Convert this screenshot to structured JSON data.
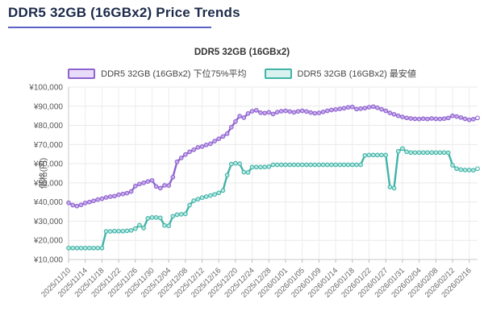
{
  "page": {
    "title": "DDR5 32GB (16GBx2) Price Trends"
  },
  "chart_data": {
    "type": "line",
    "title": "DDR5 32GB (16GBx2)",
    "ylabel": "価格(円)",
    "ylim": [
      10000,
      100000
    ],
    "grid": true,
    "legend_position": "top",
    "y_tick_labels": [
      "¥10,000",
      "¥20,000",
      "¥30,000",
      "¥40,000",
      "¥50,000",
      "¥60,000",
      "¥70,000",
      "¥80,000",
      "¥90,000",
      "¥100,000"
    ],
    "x_tick_labels": [
      "2025/11/10",
      "2025/11/14",
      "2025/11/18",
      "2025/11/22",
      "2025/11/26",
      "2025/11/30",
      "2025/12/04",
      "2025/12/08",
      "2025/12/12",
      "2025/12/16",
      "2025/12/20",
      "2025/12/24",
      "2025/12/28",
      "2026/01/01",
      "2026/01/05",
      "2026/01/09",
      "2026/01/14",
      "2026/01/18",
      "2026/01/22",
      "2026/01/27",
      "2026/01/31",
      "2026/02/04",
      "2026/02/08",
      "2026/02/12",
      "2026/02/16"
    ],
    "tick_every": 4,
    "series": [
      {
        "name": "DDR5 32GB (16GBx2) 下位75%平均",
        "color": "#8d63d0",
        "marker_fill": "#c9abe9",
        "legend_fill": "#e8dcf8",
        "values": [
          39600,
          38400,
          37900,
          38500,
          39500,
          40000,
          40600,
          41300,
          41700,
          42400,
          42800,
          43100,
          43800,
          44200,
          44600,
          45500,
          48300,
          49400,
          50000,
          50700,
          51300,
          48100,
          47200,
          48700,
          48600,
          53000,
          61000,
          63000,
          64800,
          66200,
          67300,
          68500,
          68900,
          69800,
          70400,
          71800,
          73000,
          74200,
          75700,
          79000,
          82000,
          84800,
          84000,
          86200,
          87400,
          87900,
          86600,
          86400,
          86800,
          85900,
          86900,
          87400,
          87600,
          87200,
          86800,
          87300,
          87600,
          87200,
          86700,
          86300,
          86500,
          87000,
          87600,
          88000,
          88300,
          88600,
          88900,
          89400,
          89600,
          88500,
          88700,
          89000,
          89500,
          89800,
          89200,
          88400,
          87600,
          86500,
          85800,
          85000,
          84400,
          83900,
          83600,
          83400,
          83300,
          83500,
          83300,
          83600,
          83400,
          83300,
          83500,
          83900,
          85000,
          84600,
          84100,
          83400,
          82900,
          83200,
          83900
        ]
      },
      {
        "name": "DDR5 32GB (16GBx2) 最安値",
        "color": "#41b3a7",
        "marker_fill": "#b9e7e1",
        "legend_fill": "#d9f2ef",
        "values": [
          15980,
          15980,
          15980,
          15980,
          15980,
          15980,
          15980,
          15980,
          15980,
          24680,
          24680,
          24800,
          24800,
          24800,
          24990,
          25200,
          26100,
          27900,
          26400,
          31500,
          31900,
          31900,
          31700,
          27800,
          27600,
          32600,
          33400,
          33600,
          33800,
          38400,
          40700,
          41500,
          42300,
          42800,
          43400,
          44000,
          44800,
          46000,
          54000,
          59800,
          60200,
          60000,
          55600,
          55400,
          58200,
          58200,
          58200,
          58300,
          58400,
          59400,
          59400,
          59400,
          59400,
          59400,
          59400,
          59400,
          59400,
          59400,
          59400,
          59400,
          59400,
          59400,
          59400,
          59400,
          59400,
          59400,
          59400,
          59400,
          59400,
          59400,
          59400,
          64300,
          64500,
          64500,
          64500,
          64500,
          64500,
          47800,
          47200,
          66500,
          67900,
          66200,
          65800,
          65800,
          65800,
          65800,
          65800,
          65800,
          65800,
          65800,
          65800,
          65700,
          59200,
          57400,
          56900,
          56700,
          56700,
          56600,
          57400
        ]
      }
    ]
  }
}
